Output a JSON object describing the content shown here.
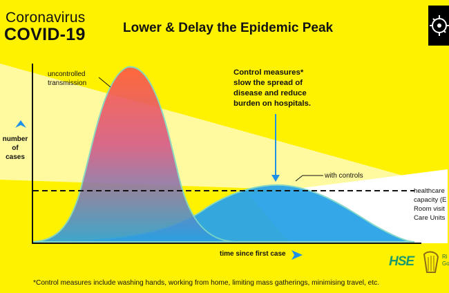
{
  "brand": {
    "line1": "Coronavirus",
    "line2": "COVID-19"
  },
  "title": "Lower & Delay the Epidemic Peak",
  "axes": {
    "ylabel": [
      "number",
      "of",
      "cases"
    ],
    "xlabel": "time since first case"
  },
  "annotations": {
    "uncontrolled": [
      "uncontrolled",
      "transmission"
    ],
    "control_measures": [
      "Control measures*",
      "slow the spread of",
      "disease and reduce",
      "burden on hospitals."
    ],
    "with_controls": "with controls",
    "capacity": [
      "healthcare",
      "capacity (E",
      "Room visit",
      "Care Units"
    ]
  },
  "footnote": "*Control measures include washing hands, working from home, limiting mass gatherings, minimising travel, etc.",
  "logos": {
    "hse": "HSE",
    "govt": [
      "Ri",
      "Go"
    ]
  },
  "colors": {
    "background": "#fff200",
    "uncontrolled_top": "#ff5a44",
    "uncontrolled_bottom": "#2a9fe0",
    "controlled": "#2aa3e8",
    "curve_outline": "#7fd6c8",
    "arrow": "#1e90e8",
    "capacity_line": "#111111"
  },
  "icons": {
    "virus": "virus-icon",
    "hse": "hse-logo",
    "harp": "harp-icon"
  }
}
